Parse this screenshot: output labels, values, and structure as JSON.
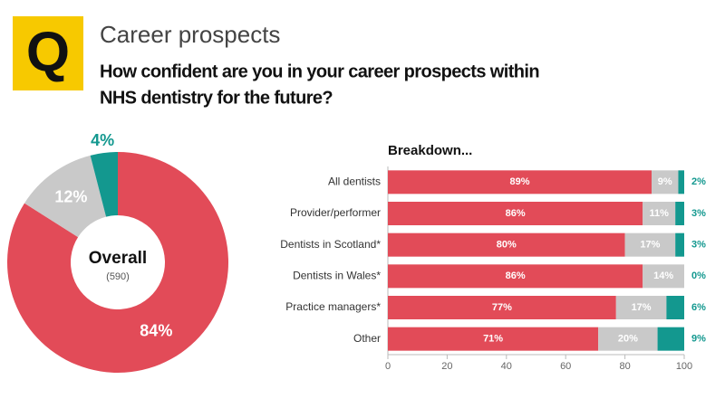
{
  "header": {
    "badge": "Q",
    "topic": "Career prospects",
    "question": [
      "How confident are you in your career prospects within",
      "NHS dentistry for the future?"
    ]
  },
  "chart_data": [
    {
      "type": "donut",
      "values": [
        84,
        12,
        4
      ],
      "value_labels": [
        "84%",
        "12%",
        "4%"
      ],
      "colors": [
        "#e24b58",
        "#c9c9c9",
        "#13988f"
      ],
      "center_label": "Overall",
      "center_sublabel": "(590)"
    },
    {
      "type": "bar",
      "orientation": "horizontal",
      "stacked": true,
      "title": "Breakdown...",
      "categories": [
        "All dentists",
        "Provider/performer",
        "Dentists in Scotland*",
        "Dentists in Wales*",
        "Practice managers*",
        "Other"
      ],
      "series": [
        {
          "color": "#e24b58",
          "values": [
            89,
            86,
            80,
            86,
            77,
            71
          ],
          "value_labels": [
            "89%",
            "86%",
            "80%",
            "86%",
            "77%",
            "71%"
          ]
        },
        {
          "color": "#c9c9c9",
          "values": [
            9,
            11,
            17,
            14,
            17,
            20
          ],
          "value_labels": [
            "9%",
            "11%",
            "17%",
            "14%",
            "17%",
            "20%"
          ]
        },
        {
          "color": "#13988f",
          "values": [
            2,
            3,
            3,
            0,
            6,
            9
          ],
          "value_labels": [
            "2%",
            "3%",
            "3%",
            "0%",
            "6%",
            "9%"
          ]
        }
      ],
      "xlim": [
        0,
        100
      ],
      "xticks": [
        0,
        20,
        40,
        60,
        80,
        100
      ]
    }
  ]
}
